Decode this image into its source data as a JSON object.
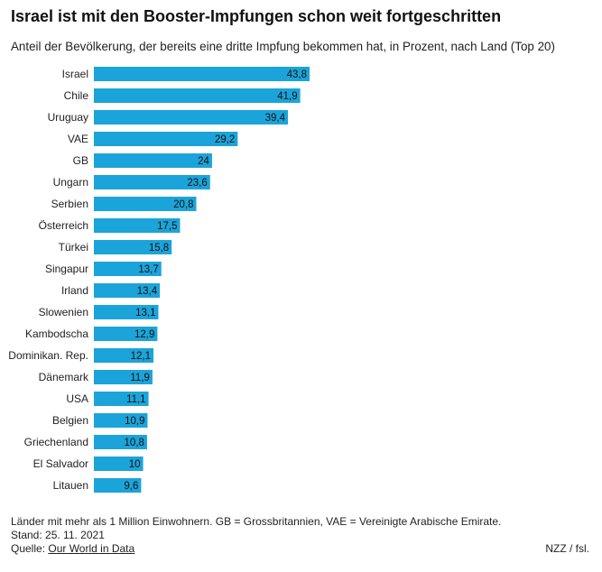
{
  "chart_data": {
    "type": "bar",
    "orientation": "horizontal",
    "title": "Israel ist mit den Booster-Impfungen schon weit fortgeschritten",
    "subtitle": "Anteil der Bevölkerung, der bereits eine dritte Impfung bekommen hat, in Prozent, nach Land (Top 20)",
    "categories": [
      "Israel",
      "Chile",
      "Uruguay",
      "VAE",
      "GB",
      "Ungarn",
      "Serbien",
      "Österreich",
      "Türkei",
      "Singapur",
      "Irland",
      "Slowenien",
      "Kambodscha",
      "Dominikan. Rep.",
      "Dänemark",
      "USA",
      "Belgien",
      "Griechenland",
      "El Salvador",
      "Litauen"
    ],
    "values": [
      43.8,
      41.9,
      39.4,
      29.2,
      24,
      23.6,
      20.8,
      17.5,
      15.8,
      13.7,
      13.4,
      13.1,
      12.9,
      12.1,
      11.9,
      11.1,
      10.9,
      10.8,
      10,
      9.6
    ],
    "value_labels": [
      "43,8",
      "41,9",
      "39,4",
      "29,2",
      "24",
      "23,6",
      "20,8",
      "17,5",
      "15,8",
      "13,7",
      "13,4",
      "13,1",
      "12,9",
      "12,1",
      "11,9",
      "11,1",
      "10,9",
      "10,8",
      "10",
      "9,6"
    ],
    "xlim": [
      0,
      43.8
    ],
    "grid": false,
    "bar_color": "#1ba4d9"
  },
  "footer": {
    "note": "Länder mit mehr als 1 Million Einwohnern. GB = Grossbritannien, VAE = Vereinigte Arabische Emirate.",
    "date": "Stand: 25. 11. 2021",
    "source_prefix": "Quelle: ",
    "source_link": "Our World in Data",
    "credit": "NZZ / fsl."
  }
}
